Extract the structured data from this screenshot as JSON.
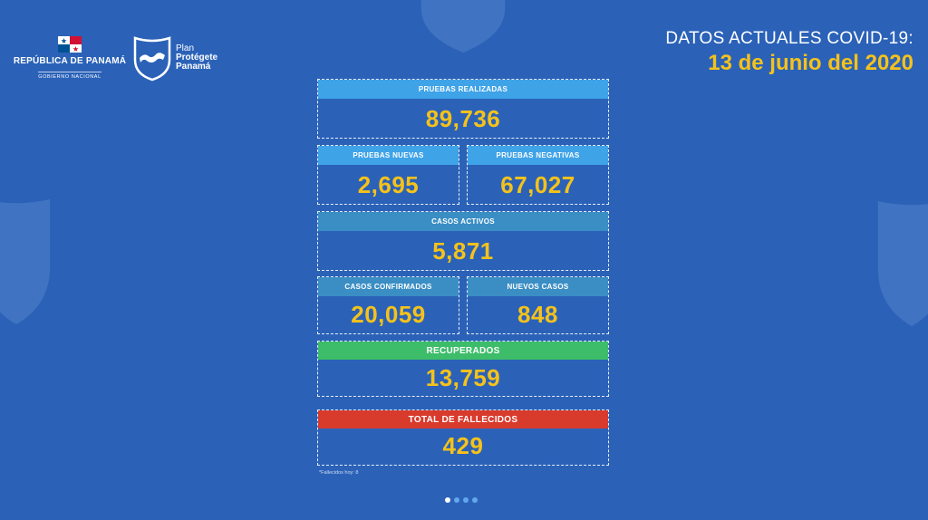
{
  "colors": {
    "background": "#2b62b8",
    "accent_yellow": "#f5c21b",
    "label_light_blue": "#3fa3e8",
    "label_steel_blue": "#3a8ec4",
    "label_green": "#3dbd6a",
    "label_red": "#d83a2c"
  },
  "header": {
    "government_name": "REPÚBLICA DE PANAMÁ",
    "government_sub": "GOBIERNO NACIONAL",
    "plan_line1": "Plan",
    "plan_line2": "Protégete",
    "plan_line3": "Panamá",
    "title": "DATOS ACTUALES COVID-19:",
    "date": "13 de junio del 2020"
  },
  "stats": {
    "pruebas_realizadas": {
      "label": "PRUEBAS REALIZADAS",
      "value": "89,736"
    },
    "pruebas_nuevas": {
      "label": "PRUEBAS NUEVAS",
      "value": "2,695"
    },
    "pruebas_negativas": {
      "label": "PRUEBAS NEGATIVAS",
      "value": "67,027"
    },
    "casos_activos": {
      "label": "CASOS ACTIVOS",
      "value": "5,871"
    },
    "casos_confirmados": {
      "label": "CASOS CONFIRMADOS",
      "value": "20,059"
    },
    "nuevos_casos": {
      "label": "NUEVOS CASOS",
      "value": "848"
    },
    "recuperados": {
      "label": "RECUPERADOS",
      "value": "13,759"
    },
    "fallecidos": {
      "label": "TOTAL DE FALLECIDOS",
      "value": "429"
    }
  },
  "footnote": "*Fallecidos hoy: 8",
  "pager": {
    "current": 1,
    "total": 4
  }
}
